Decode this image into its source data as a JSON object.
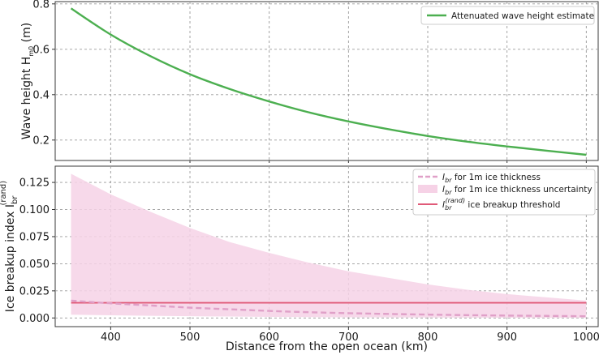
{
  "chart_data": [
    {
      "type": "line",
      "ylabel": "Wave height H",
      "ylabel_sub": "m0",
      "ylabel_unit": " (m)",
      "xlim": [
        330,
        1015
      ],
      "ylim": [
        0.11,
        0.81
      ],
      "xticks": [
        400,
        500,
        600,
        700,
        800,
        900,
        1000
      ],
      "yticks": [
        0.2,
        0.4,
        0.6,
        0.8
      ],
      "ytick_labels": [
        "0.2",
        "0.4",
        "0.6",
        "0.8"
      ],
      "grid": true,
      "legend_position": "top-right",
      "series": [
        {
          "name": "Attenuated wave height estimate",
          "color": "#4caf50",
          "x": [
            350,
            400,
            450,
            500,
            550,
            600,
            650,
            700,
            750,
            800,
            850,
            900,
            950,
            1000
          ],
          "values": [
            0.78,
            0.665,
            0.57,
            0.49,
            0.425,
            0.37,
            0.322,
            0.282,
            0.248,
            0.218,
            0.193,
            0.172,
            0.153,
            0.135
          ]
        }
      ]
    },
    {
      "type": "line",
      "xlabel": "Distance from the open ocean (km)",
      "ylabel": "Ice breakup index I",
      "ylabel_sub": "br",
      "ylabel_sup": "(rand)",
      "xlim": [
        330,
        1015
      ],
      "ylim": [
        -0.008,
        0.14
      ],
      "xticks": [
        400,
        500,
        600,
        700,
        800,
        900,
        1000
      ],
      "xtick_labels": [
        "400",
        "500",
        "600",
        "700",
        "800",
        "900",
        "1000"
      ],
      "yticks": [
        0.0,
        0.025,
        0.05,
        0.075,
        0.1,
        0.125
      ],
      "ytick_labels": [
        "0.000",
        "0.025",
        "0.050",
        "0.075",
        "0.100",
        "0.125"
      ],
      "grid": true,
      "legend_position": "top-right",
      "series": [
        {
          "name_main": "I",
          "name_sub": "br",
          "name_rest": " for 1m ice thickness",
          "style": "dashed",
          "color": "#e0a0c8",
          "x": [
            350,
            400,
            450,
            500,
            550,
            600,
            650,
            700,
            750,
            800,
            850,
            900,
            950,
            1000
          ],
          "values": [
            0.016,
            0.0135,
            0.0115,
            0.0095,
            0.008,
            0.0065,
            0.0053,
            0.0044,
            0.0037,
            0.0031,
            0.0026,
            0.0022,
            0.0019,
            0.0016
          ]
        },
        {
          "name_main": "I",
          "name_sub": "br",
          "name_rest": " for 1m ice thickness uncertainty",
          "style": "band",
          "color": "#f6d2e6",
          "x": [
            350,
            400,
            450,
            500,
            550,
            600,
            650,
            700,
            750,
            800,
            850,
            900,
            950,
            1000
          ],
          "upper": [
            0.133,
            0.114,
            0.098,
            0.083,
            0.07,
            0.06,
            0.051,
            0.043,
            0.037,
            0.031,
            0.026,
            0.022,
            0.019,
            0.016
          ],
          "lower": [
            0.003,
            0.0025,
            0.002,
            0.0016,
            0.0013,
            0.001,
            0.0008,
            0.0006,
            0.0005,
            0.0004,
            0.0003,
            0.0002,
            0.0001,
            0.0001
          ]
        },
        {
          "name_main": "I",
          "name_sub": "br",
          "name_sup": "(rand)",
          "name_rest": " ice breakup threshold",
          "style": "solid",
          "color": "#e05a78",
          "x": [
            350,
            1000
          ],
          "values": [
            0.014,
            0.014
          ]
        }
      ]
    }
  ]
}
